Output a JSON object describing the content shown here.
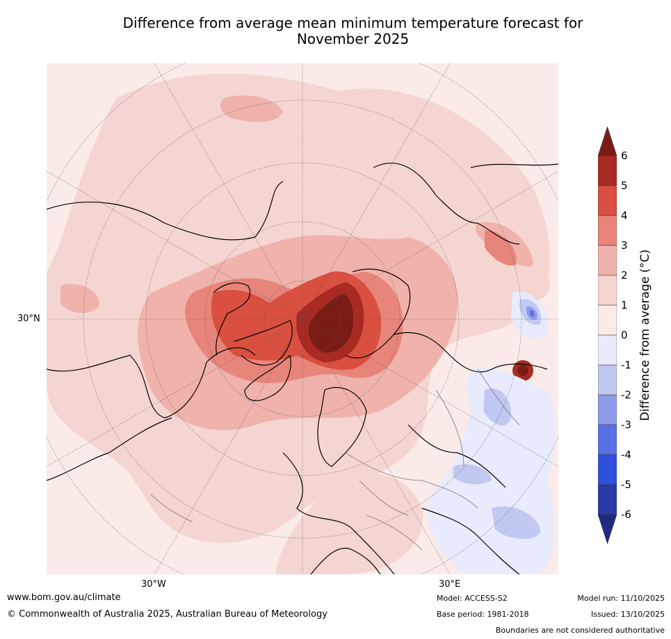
{
  "title_line1": "Difference from average mean minimum temperature forecast for",
  "title_line2": "November 2025",
  "map": {
    "lat_label": "30°N",
    "lon_labels": [
      "30°W",
      "30°E"
    ]
  },
  "colorbar": {
    "label": "Difference from average (°C)",
    "ticks": [
      "6",
      "5",
      "4",
      "3",
      "2",
      "1",
      "0",
      "-1",
      "-2",
      "-3",
      "-4",
      "-5",
      "-6"
    ],
    "colors": [
      "#7a1c16",
      "#a82a22",
      "#d94f40",
      "#e8857a",
      "#efb3ab",
      "#f5d5d1",
      "#fbebe8",
      "#e7ebfb",
      "#c1c8f1",
      "#8d9bea",
      "#5b71e3",
      "#2f4fdc",
      "#2a3aa8",
      "#1f2a80"
    ]
  },
  "footer": {
    "url": "www.bom.gov.au/climate",
    "copyright": "© Commonwealth of Australia 2025, Australian Bureau of Meteorology",
    "model": "Model: ACCESS-S2",
    "model_run": "Model run: 11/10/2025",
    "base_period": "Base period: 1981-2018",
    "issued": "Issued: 13/10/2025",
    "boundaries": "Boundaries are not considered authoritative"
  }
}
